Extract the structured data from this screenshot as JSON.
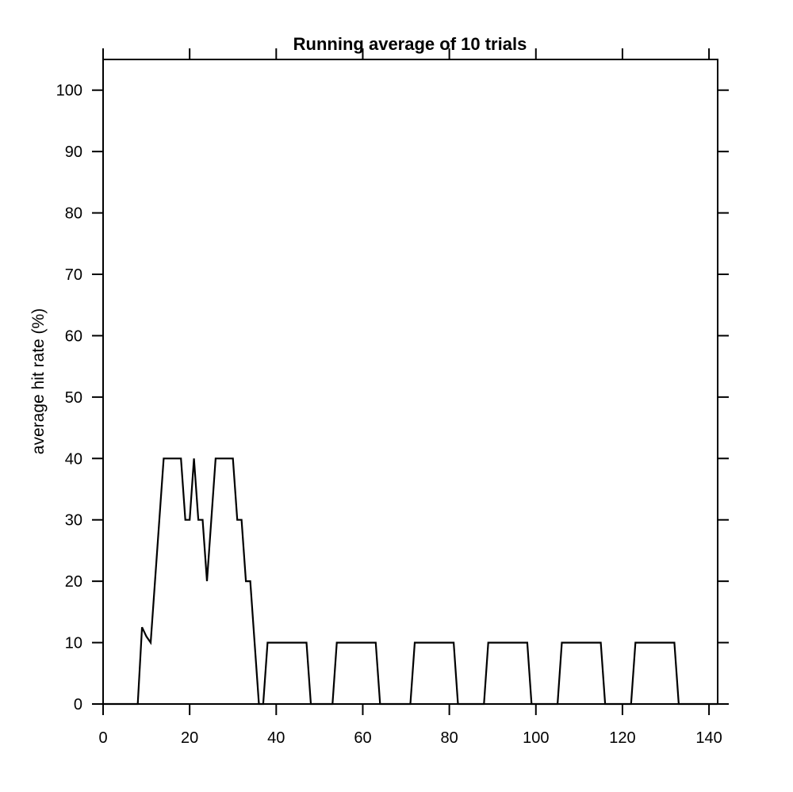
{
  "chart_data": {
    "type": "line",
    "title": "Running average of 10 trials",
    "xlabel": "",
    "ylabel": "average hit rate (%)",
    "xlim": [
      0,
      142
    ],
    "ylim": [
      0,
      105
    ],
    "x_ticks": [
      0,
      20,
      40,
      60,
      80,
      100,
      120,
      140
    ],
    "y_ticks": [
      0,
      10,
      20,
      30,
      40,
      50,
      60,
      70,
      80,
      90,
      100
    ],
    "grid": false,
    "legend": "none",
    "line_color": "#000000",
    "series": [
      {
        "x": [
          0,
          8,
          9,
          10,
          11,
          14,
          18,
          19,
          20,
          21,
          22,
          23,
          24,
          26,
          30,
          31,
          32,
          33,
          34,
          36,
          37,
          38,
          47,
          48,
          53,
          54,
          63,
          64,
          71,
          72,
          81,
          82,
          88,
          89,
          98,
          99,
          105,
          106,
          115,
          116,
          122,
          123,
          132,
          133,
          142
        ],
        "y": [
          0,
          0,
          12.5,
          11,
          10,
          40,
          40,
          30,
          30,
          40,
          30,
          30,
          20,
          40,
          40,
          30,
          30,
          20,
          20,
          0,
          0,
          10,
          10,
          0,
          0,
          10,
          10,
          0,
          0,
          10,
          10,
          0,
          0,
          10,
          10,
          0,
          0,
          10,
          10,
          0,
          0,
          10,
          10,
          0,
          0
        ]
      }
    ]
  }
}
